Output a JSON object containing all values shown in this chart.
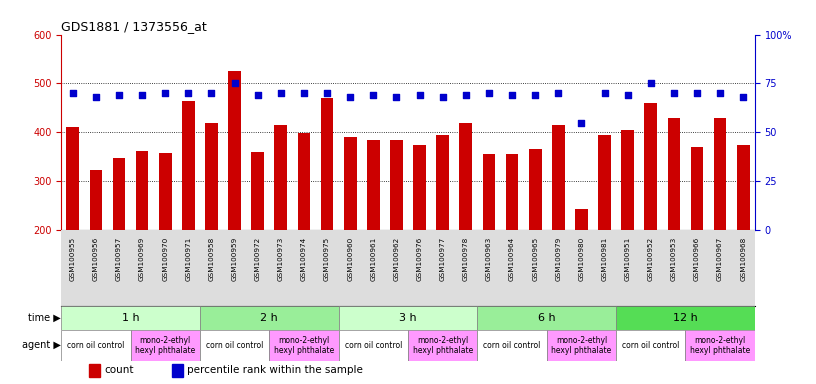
{
  "title": "GDS1881 / 1373556_at",
  "samples": [
    "GSM100955",
    "GSM100956",
    "GSM100957",
    "GSM100969",
    "GSM100970",
    "GSM100971",
    "GSM100958",
    "GSM100959",
    "GSM100972",
    "GSM100973",
    "GSM100974",
    "GSM100975",
    "GSM100960",
    "GSM100961",
    "GSM100962",
    "GSM100976",
    "GSM100977",
    "GSM100978",
    "GSM100963",
    "GSM100964",
    "GSM100965",
    "GSM100979",
    "GSM100980",
    "GSM100981",
    "GSM100951",
    "GSM100952",
    "GSM100953",
    "GSM100966",
    "GSM100967",
    "GSM100968"
  ],
  "counts": [
    410,
    323,
    348,
    362,
    357,
    465,
    420,
    525,
    360,
    415,
    398,
    470,
    390,
    385,
    385,
    375,
    395,
    420,
    355,
    355,
    365,
    415,
    243,
    395,
    405,
    460,
    430,
    370,
    430,
    375
  ],
  "percentile": [
    70,
    68,
    69,
    69,
    70,
    70,
    70,
    75,
    69,
    70,
    70,
    70,
    68,
    69,
    68,
    69,
    68,
    69,
    70,
    69,
    69,
    70,
    55,
    70,
    69,
    75,
    70,
    70,
    70,
    68
  ],
  "ylim_left": [
    200,
    600
  ],
  "ylim_right": [
    0,
    100
  ],
  "yticks_left": [
    200,
    300,
    400,
    500,
    600
  ],
  "yticks_right": [
    0,
    25,
    50,
    75,
    100
  ],
  "bar_color": "#cc0000",
  "dot_color": "#0000cc",
  "background_color": "#ffffff",
  "xticklabel_bg": "#dddddd",
  "time_groups": [
    {
      "label": "1 h",
      "start": 0,
      "end": 6,
      "color": "#ccffcc"
    },
    {
      "label": "2 h",
      "start": 6,
      "end": 12,
      "color": "#99ee99"
    },
    {
      "label": "3 h",
      "start": 12,
      "end": 18,
      "color": "#ccffcc"
    },
    {
      "label": "6 h",
      "start": 18,
      "end": 24,
      "color": "#99ee99"
    },
    {
      "label": "12 h",
      "start": 24,
      "end": 30,
      "color": "#55dd55"
    }
  ],
  "agent_groups": [
    {
      "label": "corn oil control",
      "start": 0,
      "end": 3,
      "color": "#ffffff"
    },
    {
      "label": "mono-2-ethyl\nhexyl phthalate",
      "start": 3,
      "end": 6,
      "color": "#ff99ff"
    },
    {
      "label": "corn oil control",
      "start": 6,
      "end": 9,
      "color": "#ffffff"
    },
    {
      "label": "mono-2-ethyl\nhexyl phthalate",
      "start": 9,
      "end": 12,
      "color": "#ff99ff"
    },
    {
      "label": "corn oil control",
      "start": 12,
      "end": 15,
      "color": "#ffffff"
    },
    {
      "label": "mono-2-ethyl\nhexyl phthalate",
      "start": 15,
      "end": 18,
      "color": "#ff99ff"
    },
    {
      "label": "corn oil control",
      "start": 18,
      "end": 21,
      "color": "#ffffff"
    },
    {
      "label": "mono-2-ethyl\nhexyl phthalate",
      "start": 21,
      "end": 24,
      "color": "#ff99ff"
    },
    {
      "label": "corn oil control",
      "start": 24,
      "end": 27,
      "color": "#ffffff"
    },
    {
      "label": "mono-2-ethyl\nhexyl phthalate",
      "start": 27,
      "end": 30,
      "color": "#ff99ff"
    }
  ],
  "bar_width": 0.55
}
